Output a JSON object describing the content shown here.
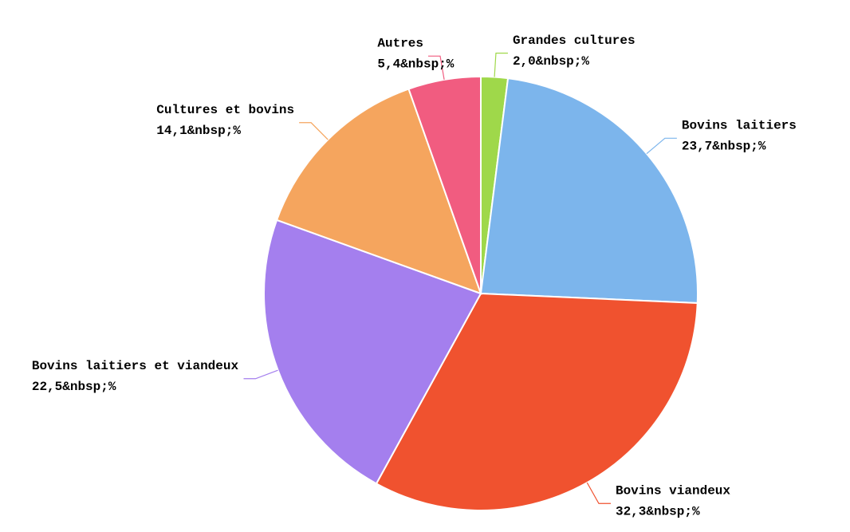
{
  "chart_data": {
    "type": "pie",
    "categories": [
      "Grandes cultures",
      "Bovins laitiers",
      "Bovins viandeux",
      "Bovins laitiers et viandeux",
      "Cultures et bovins",
      "Autres"
    ],
    "values": [
      2.0,
      23.7,
      32.3,
      22.5,
      14.1,
      5.4
    ],
    "value_labels": [
      "2,0&nbsp;%",
      "23,7&nbsp;%",
      "32,3&nbsp;%",
      "22,5&nbsp;%",
      "14,1&nbsp;%",
      "5,4&nbsp;%"
    ],
    "colors": [
      "#9fd84a",
      "#7cb5ec",
      "#f0522f",
      "#a47fee",
      "#f5a55e",
      "#f15c80"
    ]
  }
}
